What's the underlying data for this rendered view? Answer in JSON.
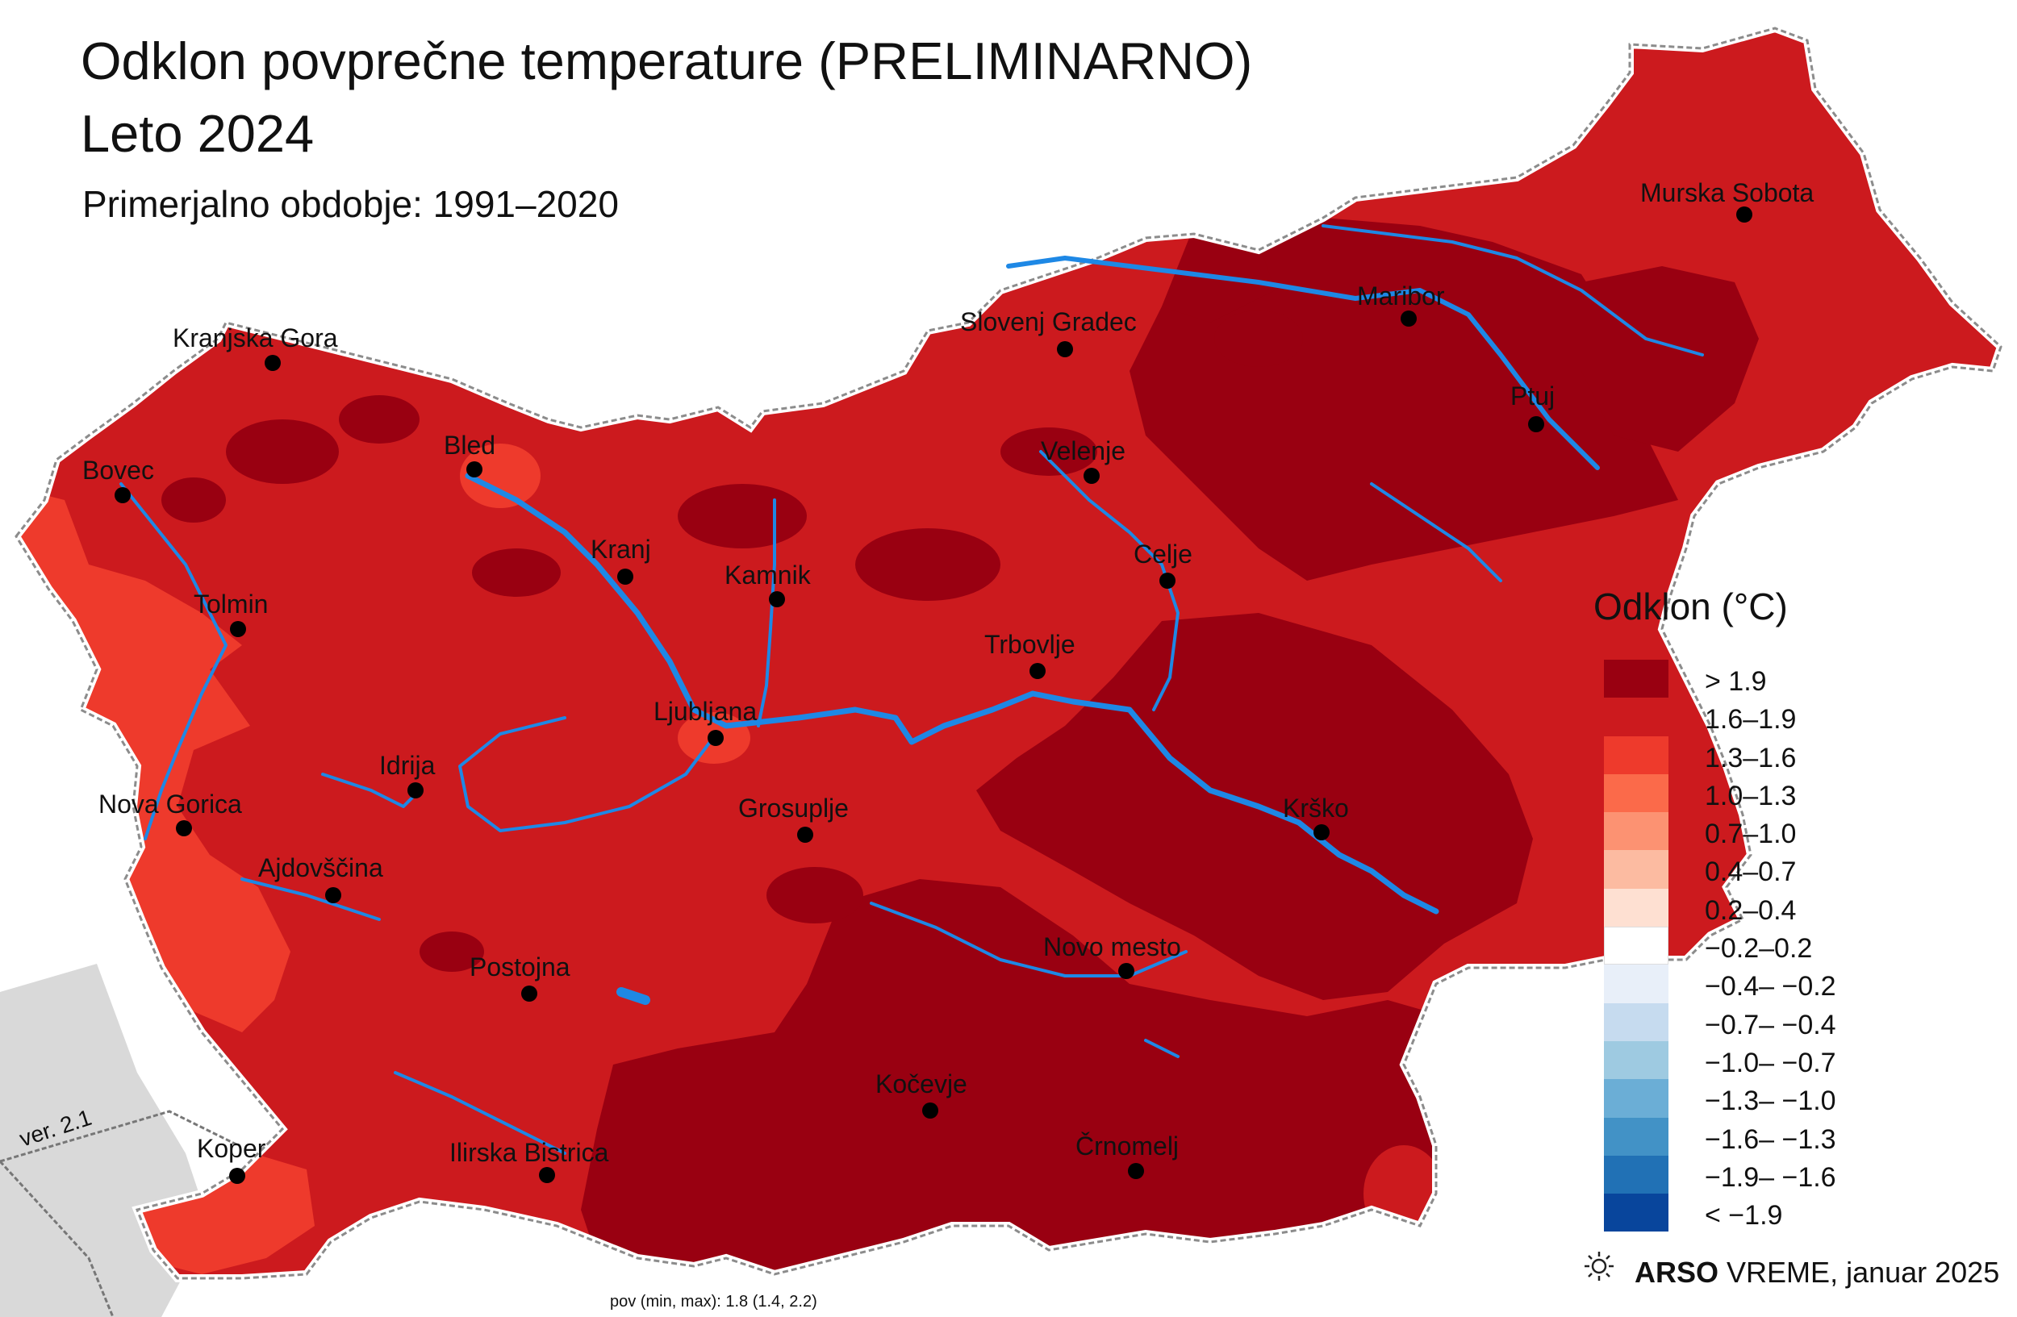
{
  "title_line1": "Odklon povprečne temperature (PRELIMINARNO)",
  "title_line2": "Leto 2024",
  "subtitle": "Primerjalno obdobje: 1991–2020",
  "legend": {
    "title": "Odklon (°C)",
    "items": [
      {
        "label": "> 1.9",
        "color": "#990011"
      },
      {
        "label": "1.6–1.9",
        "color": "#cc1a1e"
      },
      {
        "label": "1.3–1.6",
        "color": "#ee3a2c"
      },
      {
        "label": "1.0–1.3",
        "color": "#fb6a4a"
      },
      {
        "label": "0.7–1.0",
        "color": "#fc9272"
      },
      {
        "label": "0.4–0.7",
        "color": "#fcbba1"
      },
      {
        "label": "0.2–0.4",
        "color": "#fee0d2"
      },
      {
        "label": "−0.2–0.2",
        "color": "#ffffff"
      },
      {
        "label": "−0.4– −0.2",
        "color": "#e8eff9"
      },
      {
        "label": "−0.7– −0.4",
        "color": "#c6dbef"
      },
      {
        "label": "−1.0– −0.7",
        "color": "#9ecae1"
      },
      {
        "label": "−1.3– −1.0",
        "color": "#6baed6"
      },
      {
        "label": "−1.6– −1.3",
        "color": "#4292c6"
      },
      {
        "label": "−1.9– −1.6",
        "color": "#2171b5"
      },
      {
        "label": "< −1.9",
        "color": "#08459c"
      }
    ]
  },
  "cities": [
    "Murska Sobota",
    "Maribor",
    "Slovenj Gradec",
    "Kranjska Gora",
    "Ptuj",
    "Bled",
    "Velenje",
    "Bovec",
    "Celje",
    "Kranj",
    "Kamnik",
    "Tolmin",
    "Trbovlje",
    "Ljubljana",
    "Idrija",
    "Nova Gorica",
    "Grosuplje",
    "Krško",
    "Ajdovščina",
    "Novo mesto",
    "Postojna",
    "Kočevje",
    "Koper",
    "Ilirska Bistrica",
    "Črnomelj"
  ],
  "version_label": "ver. 2.1",
  "credit": {
    "brand": "ARSO",
    "product": "VREME",
    "date": ", januar 2025"
  },
  "stats_text": "pov (min, max): 1.8 (1.4, 2.2)",
  "colors": {
    "river": "#1e88e5",
    "neighbor": "#d9d9d9"
  }
}
